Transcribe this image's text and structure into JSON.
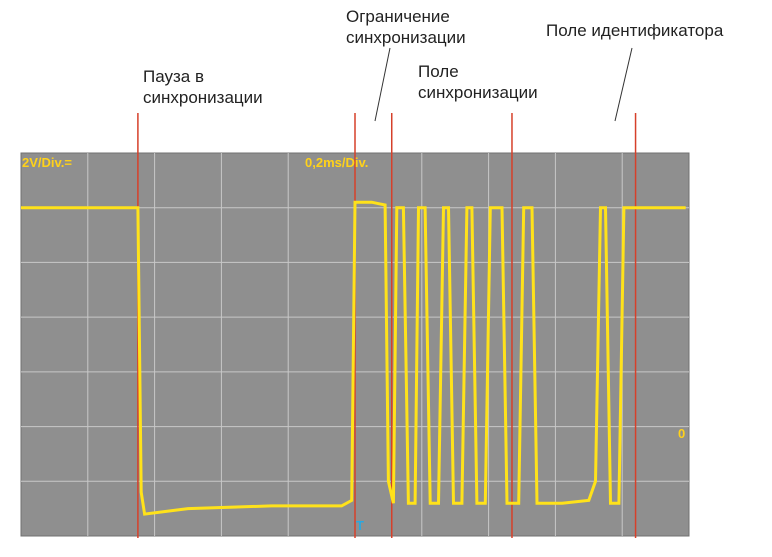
{
  "annotations": {
    "sync_pause": {
      "line1": "Пауза в",
      "line2": "синхронизации"
    },
    "sync_limit": {
      "line1": "Ограничение",
      "line2": "синхронизации"
    },
    "sync_field": {
      "line1": "Поле",
      "line2": "синхронизации"
    },
    "id_field": {
      "line1": "Поле идентификатора"
    }
  },
  "scope": {
    "volt_div": "2V/Div.=",
    "time_div": "0,2ms/Div.",
    "ground_marker": "0",
    "trigger_marker": "T"
  },
  "colors": {
    "screen_bg": "#8f8f8f",
    "grid": "#c8c8c8",
    "trace": "#ffe21a",
    "scope_text": "#ffd21a",
    "marker_line": "#d6402a",
    "trigger": "#2aa8e0"
  },
  "chart_data": {
    "type": "line",
    "title": "",
    "xlabel": "0,2ms/Div.",
    "ylabel": "2V/Div.=",
    "divisions": {
      "x": 10,
      "y": 7
    },
    "xlim": [
      0,
      2.0
    ],
    "ylim": [
      0,
      14
    ],
    "x_units": "ms",
    "y_units": "V",
    "marker_lines_ms": [
      0.35,
      1.0,
      1.11,
      1.47,
      1.84
    ],
    "series": [
      {
        "points": [
          [
            0.0,
            12.0
          ],
          [
            0.31,
            12.0
          ],
          [
            0.35,
            12.0
          ],
          [
            0.36,
            1.6
          ],
          [
            0.37,
            0.8
          ],
          [
            0.5,
            1.0
          ],
          [
            0.75,
            1.1
          ],
          [
            0.96,
            1.1
          ],
          [
            0.99,
            1.3
          ],
          [
            1.0,
            12.2
          ],
          [
            1.05,
            12.2
          ],
          [
            1.09,
            12.1
          ],
          [
            1.1,
            2.0
          ],
          [
            1.115,
            1.2
          ],
          [
            1.125,
            12.0
          ],
          [
            1.145,
            12.0
          ],
          [
            1.16,
            1.2
          ],
          [
            1.18,
            1.2
          ],
          [
            1.19,
            12.0
          ],
          [
            1.21,
            12.0
          ],
          [
            1.225,
            1.2
          ],
          [
            1.25,
            1.2
          ],
          [
            1.265,
            12.0
          ],
          [
            1.28,
            12.0
          ],
          [
            1.295,
            1.2
          ],
          [
            1.32,
            1.2
          ],
          [
            1.335,
            12.0
          ],
          [
            1.35,
            12.0
          ],
          [
            1.365,
            1.2
          ],
          [
            1.39,
            1.2
          ],
          [
            1.405,
            12.0
          ],
          [
            1.44,
            12.0
          ],
          [
            1.455,
            1.2
          ],
          [
            1.49,
            1.2
          ],
          [
            1.505,
            12.0
          ],
          [
            1.53,
            12.0
          ],
          [
            1.545,
            1.2
          ],
          [
            1.58,
            1.2
          ],
          [
            1.595,
            1.2
          ],
          [
            1.62,
            1.2
          ],
          [
            1.7,
            1.3
          ],
          [
            1.72,
            2.0
          ],
          [
            1.735,
            12.0
          ],
          [
            1.75,
            12.0
          ],
          [
            1.765,
            1.2
          ],
          [
            1.79,
            1.2
          ],
          [
            1.805,
            12.0
          ],
          [
            1.84,
            12.0
          ],
          [
            1.86,
            12.0
          ],
          [
            1.99,
            12.0
          ]
        ]
      }
    ]
  }
}
